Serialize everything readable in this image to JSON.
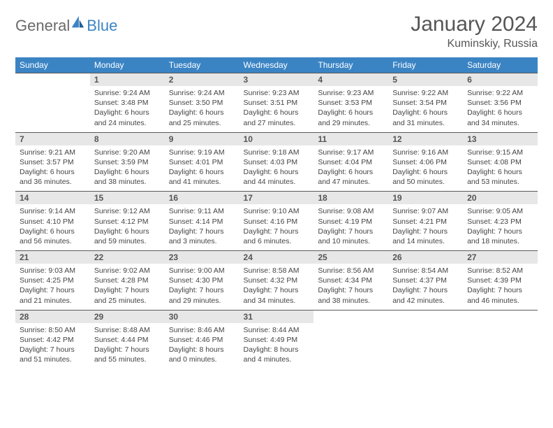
{
  "logo": {
    "part1": "General",
    "part2": "Blue"
  },
  "title": "January 2024",
  "location": "Kuminskiy, Russia",
  "colors": {
    "header_bg": "#3b84c4",
    "header_text": "#ffffff",
    "daynum_bg": "#e7e7e7",
    "border": "#5a5a5a",
    "text": "#444444",
    "title_text": "#555555"
  },
  "weekdays": [
    "Sunday",
    "Monday",
    "Tuesday",
    "Wednesday",
    "Thursday",
    "Friday",
    "Saturday"
  ],
  "weeks": [
    {
      "nums": [
        "",
        "1",
        "2",
        "3",
        "4",
        "5",
        "6"
      ],
      "cells": [
        "",
        "Sunrise: 9:24 AM\nSunset: 3:48 PM\nDaylight: 6 hours and 24 minutes.",
        "Sunrise: 9:24 AM\nSunset: 3:50 PM\nDaylight: 6 hours and 25 minutes.",
        "Sunrise: 9:23 AM\nSunset: 3:51 PM\nDaylight: 6 hours and 27 minutes.",
        "Sunrise: 9:23 AM\nSunset: 3:53 PM\nDaylight: 6 hours and 29 minutes.",
        "Sunrise: 9:22 AM\nSunset: 3:54 PM\nDaylight: 6 hours and 31 minutes.",
        "Sunrise: 9:22 AM\nSunset: 3:56 PM\nDaylight: 6 hours and 34 minutes."
      ]
    },
    {
      "nums": [
        "7",
        "8",
        "9",
        "10",
        "11",
        "12",
        "13"
      ],
      "cells": [
        "Sunrise: 9:21 AM\nSunset: 3:57 PM\nDaylight: 6 hours and 36 minutes.",
        "Sunrise: 9:20 AM\nSunset: 3:59 PM\nDaylight: 6 hours and 38 minutes.",
        "Sunrise: 9:19 AM\nSunset: 4:01 PM\nDaylight: 6 hours and 41 minutes.",
        "Sunrise: 9:18 AM\nSunset: 4:03 PM\nDaylight: 6 hours and 44 minutes.",
        "Sunrise: 9:17 AM\nSunset: 4:04 PM\nDaylight: 6 hours and 47 minutes.",
        "Sunrise: 9:16 AM\nSunset: 4:06 PM\nDaylight: 6 hours and 50 minutes.",
        "Sunrise: 9:15 AM\nSunset: 4:08 PM\nDaylight: 6 hours and 53 minutes."
      ]
    },
    {
      "nums": [
        "14",
        "15",
        "16",
        "17",
        "18",
        "19",
        "20"
      ],
      "cells": [
        "Sunrise: 9:14 AM\nSunset: 4:10 PM\nDaylight: 6 hours and 56 minutes.",
        "Sunrise: 9:12 AM\nSunset: 4:12 PM\nDaylight: 6 hours and 59 minutes.",
        "Sunrise: 9:11 AM\nSunset: 4:14 PM\nDaylight: 7 hours and 3 minutes.",
        "Sunrise: 9:10 AM\nSunset: 4:16 PM\nDaylight: 7 hours and 6 minutes.",
        "Sunrise: 9:08 AM\nSunset: 4:19 PM\nDaylight: 7 hours and 10 minutes.",
        "Sunrise: 9:07 AM\nSunset: 4:21 PM\nDaylight: 7 hours and 14 minutes.",
        "Sunrise: 9:05 AM\nSunset: 4:23 PM\nDaylight: 7 hours and 18 minutes."
      ]
    },
    {
      "nums": [
        "21",
        "22",
        "23",
        "24",
        "25",
        "26",
        "27"
      ],
      "cells": [
        "Sunrise: 9:03 AM\nSunset: 4:25 PM\nDaylight: 7 hours and 21 minutes.",
        "Sunrise: 9:02 AM\nSunset: 4:28 PM\nDaylight: 7 hours and 25 minutes.",
        "Sunrise: 9:00 AM\nSunset: 4:30 PM\nDaylight: 7 hours and 29 minutes.",
        "Sunrise: 8:58 AM\nSunset: 4:32 PM\nDaylight: 7 hours and 34 minutes.",
        "Sunrise: 8:56 AM\nSunset: 4:34 PM\nDaylight: 7 hours and 38 minutes.",
        "Sunrise: 8:54 AM\nSunset: 4:37 PM\nDaylight: 7 hours and 42 minutes.",
        "Sunrise: 8:52 AM\nSunset: 4:39 PM\nDaylight: 7 hours and 46 minutes."
      ]
    },
    {
      "nums": [
        "28",
        "29",
        "30",
        "31",
        "",
        "",
        ""
      ],
      "cells": [
        "Sunrise: 8:50 AM\nSunset: 4:42 PM\nDaylight: 7 hours and 51 minutes.",
        "Sunrise: 8:48 AM\nSunset: 4:44 PM\nDaylight: 7 hours and 55 minutes.",
        "Sunrise: 8:46 AM\nSunset: 4:46 PM\nDaylight: 8 hours and 0 minutes.",
        "Sunrise: 8:44 AM\nSunset: 4:49 PM\nDaylight: 8 hours and 4 minutes.",
        "",
        "",
        ""
      ]
    }
  ]
}
